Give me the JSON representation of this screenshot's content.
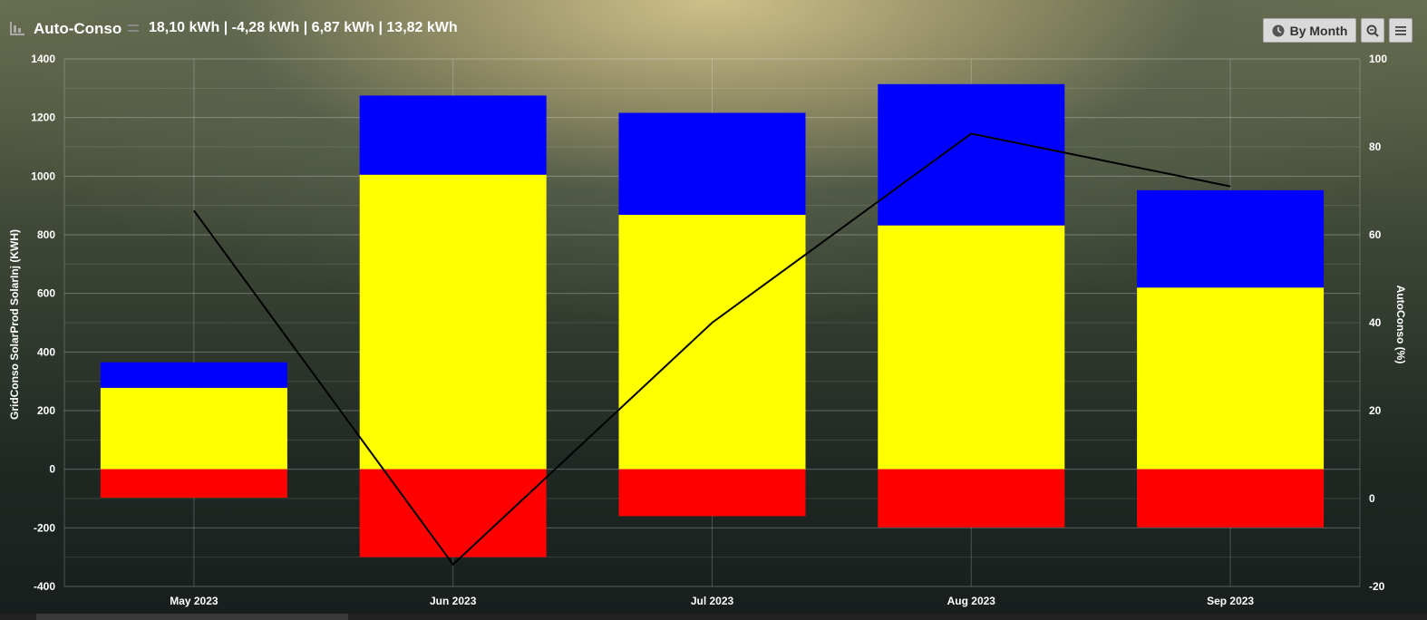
{
  "header": {
    "title": "Auto-Conso",
    "summary": "18,10 kWh | -4,28 kWh | 6,87 kWh | 13,82 kWh",
    "range_button_label": "By Month",
    "range_icon": "clock-icon",
    "zoom_icon": "zoom-out-icon",
    "menu_icon": "hamburger-menu-icon"
  },
  "chart_data": {
    "type": "bar",
    "stacked": true,
    "categories": [
      "May 2023",
      "Jun 2023",
      "Jul 2023",
      "Aug 2023",
      "Sep 2023"
    ],
    "series": [
      {
        "color": "#ffff00",
        "axis": "left",
        "values": [
          278,
          1005,
          868,
          832,
          620
        ]
      },
      {
        "color": "#0000ff",
        "axis": "left",
        "values": [
          87,
          270,
          348,
          482,
          332
        ]
      },
      {
        "color": "#ff0000",
        "axis": "left",
        "values": [
          -97,
          -300,
          -160,
          -198,
          -198
        ]
      },
      {
        "type": "line",
        "color": "#000000",
        "axis": "right",
        "values": [
          65.5,
          -15,
          40,
          83,
          71
        ]
      }
    ],
    "ylabel_left": "GridConso SolarProd SolarInj (KWH)",
    "ylabel_right": "AutoConso (%)",
    "ylim_left": [
      -400,
      1400
    ],
    "ylim_right": [
      -20,
      100
    ],
    "yticks_left": [
      "-400",
      "-200",
      "0",
      "200",
      "400",
      "600",
      "800",
      "1000",
      "1200",
      "1400"
    ],
    "yticks_right": [
      "-20",
      "0",
      "20",
      "40",
      "60",
      "80",
      "100"
    ],
    "grid": true
  }
}
